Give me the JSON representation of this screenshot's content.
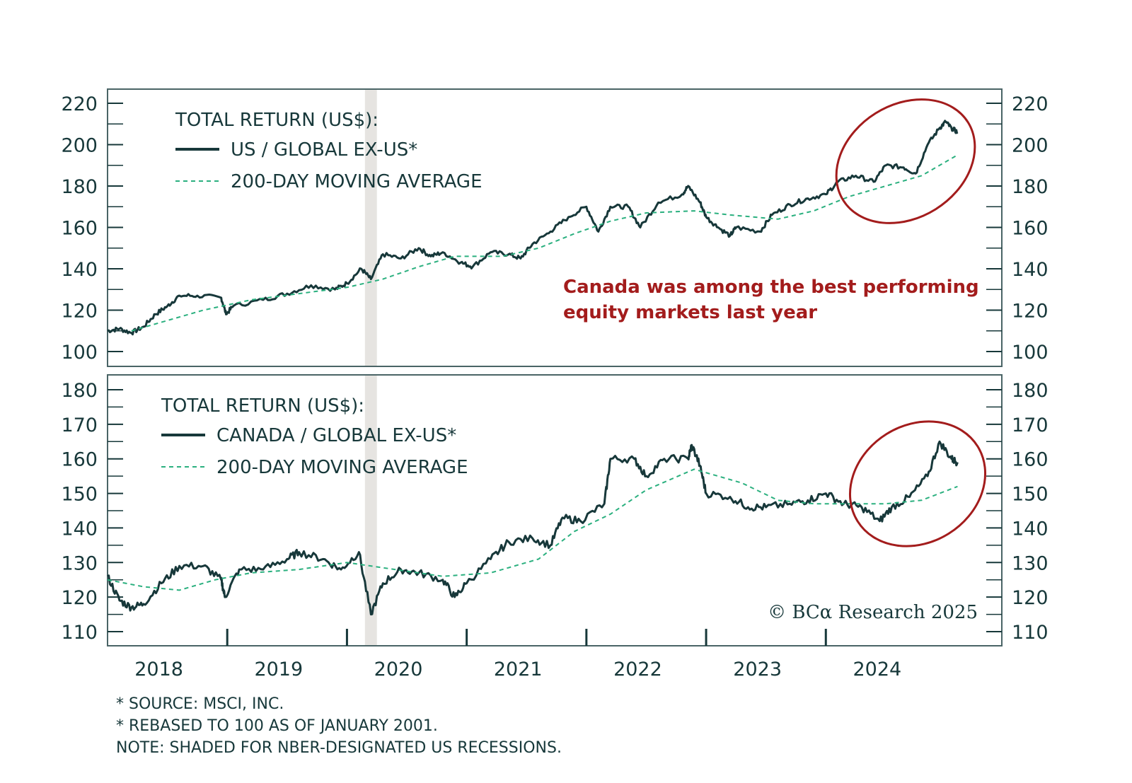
{
  "colors": {
    "series": "#17383a",
    "moving_average": "#2bb07f",
    "annotation": "#a31c1c",
    "recession": "#e6e4e1",
    "frame": "#4a6466"
  },
  "chart_data": [
    {
      "type": "line",
      "legend_title": "TOTAL RETURN (US$):",
      "ylim": [
        100,
        220
      ],
      "yticks": [
        100,
        120,
        140,
        160,
        180,
        200,
        220
      ],
      "ytick_labels": [
        "100",
        "120",
        "140",
        "160",
        "180",
        "200",
        "220"
      ],
      "recession_shading": [
        [
          2020.15,
          2020.25
        ]
      ],
      "annotation": {
        "lines": [
          "Canada was among the best performing",
          "equity markets last year"
        ],
        "highlight": "2024 to early 2025 circled"
      },
      "series": [
        {
          "name": "US / GLOBAL EX-US*",
          "style": "solid",
          "x": [
            2018.0,
            2018.1,
            2018.2,
            2018.3,
            2018.4,
            2018.5,
            2018.6,
            2018.75,
            2018.95,
            2018.99,
            2019.05,
            2019.3,
            2019.5,
            2019.7,
            2019.9,
            2020.0,
            2020.12,
            2020.2,
            2020.3,
            2020.45,
            2020.6,
            2020.7,
            2020.8,
            2020.95,
            2021.05,
            2021.2,
            2021.35,
            2021.45,
            2021.55,
            2021.7,
            2021.85,
            2022.0,
            2022.1,
            2022.2,
            2022.35,
            2022.45,
            2022.6,
            2022.8,
            2022.85,
            2022.95,
            2023.0,
            2023.1,
            2023.2,
            2023.25,
            2023.45,
            2023.55,
            2023.7,
            2023.85,
            2024.0,
            2024.1,
            2024.25,
            2024.4,
            2024.5,
            2024.65,
            2024.75,
            2024.85,
            2024.95,
            2025.0,
            2025.05,
            2025.1
          ],
          "y": [
            110,
            111,
            109,
            112,
            118,
            122,
            127,
            127,
            126,
            118,
            122,
            125,
            128,
            132,
            130,
            133,
            140,
            135,
            147,
            145,
            150,
            146,
            148,
            143,
            141,
            148,
            147,
            145,
            152,
            158,
            165,
            170,
            158,
            170,
            170,
            160,
            172,
            176,
            180,
            172,
            165,
            160,
            156,
            160,
            158,
            166,
            171,
            174,
            176,
            182,
            185,
            182,
            190,
            189,
            186,
            200,
            208,
            211,
            208,
            206
          ]
        },
        {
          "name": "200-DAY MOVING AVERAGE",
          "style": "dashed",
          "x": [
            2018.2,
            2018.5,
            2018.8,
            2019.2,
            2019.6,
            2020.0,
            2020.3,
            2020.6,
            2020.9,
            2021.3,
            2021.6,
            2021.9,
            2022.2,
            2022.5,
            2022.9,
            2023.2,
            2023.6,
            2023.9,
            2024.2,
            2024.5,
            2024.8,
            2025.1
          ],
          "y": [
            110,
            115,
            120,
            125,
            128,
            131,
            135,
            141,
            146,
            146,
            150,
            157,
            163,
            167,
            168,
            166,
            164,
            168,
            175,
            180,
            185,
            195
          ]
        }
      ]
    },
    {
      "type": "line",
      "legend_title": "TOTAL RETURN (US$):",
      "ylim": [
        110,
        180
      ],
      "yticks": [
        110,
        120,
        130,
        140,
        150,
        160,
        170,
        180
      ],
      "ytick_labels": [
        "110",
        "120",
        "130",
        "140",
        "150",
        "160",
        "170",
        "180"
      ],
      "recession_shading": [
        [
          2020.15,
          2020.25
        ]
      ],
      "highlight": "2024 to early 2025 circled",
      "series": [
        {
          "name": "CANADA / GLOBAL EX-US*",
          "style": "solid",
          "x": [
            2018.0,
            2018.1,
            2018.2,
            2018.3,
            2018.45,
            2018.6,
            2018.8,
            2018.95,
            2018.98,
            2019.1,
            2019.3,
            2019.5,
            2019.6,
            2019.8,
            2019.95,
            2020.1,
            2020.2,
            2020.3,
            2020.45,
            2020.6,
            2020.8,
            2020.9,
            2021.0,
            2021.2,
            2021.35,
            2021.55,
            2021.7,
            2021.8,
            2021.95,
            2022.15,
            2022.2,
            2022.4,
            2022.5,
            2022.65,
            2022.85,
            2022.88,
            2022.95,
            2023.0,
            2023.2,
            2023.35,
            2023.5,
            2023.7,
            2023.85,
            2024.0,
            2024.15,
            2024.3,
            2024.45,
            2024.55,
            2024.7,
            2024.85,
            2024.95,
            2025.05,
            2025.1
          ],
          "y": [
            126,
            119,
            117,
            118,
            124,
            129,
            129,
            125,
            120,
            128,
            128,
            131,
            133,
            131,
            128,
            133,
            115,
            124,
            128,
            127,
            125,
            120,
            124,
            131,
            136,
            137,
            135,
            143,
            142,
            147,
            160,
            160,
            155,
            160,
            160,
            164,
            158,
            150,
            149,
            146,
            146,
            147,
            148,
            150,
            147,
            146,
            142,
            146,
            149,
            155,
            165,
            160,
            159
          ]
        },
        {
          "name": "200-DAY MOVING AVERAGE",
          "style": "dashed",
          "x": [
            2018.0,
            2018.3,
            2018.6,
            2018.9,
            2019.2,
            2019.6,
            2020.0,
            2020.4,
            2020.8,
            2021.2,
            2021.6,
            2021.9,
            2022.2,
            2022.5,
            2022.9,
            2023.3,
            2023.6,
            2023.9,
            2024.2,
            2024.5,
            2024.8,
            2025.1
          ],
          "y": [
            125,
            123,
            122,
            125,
            127,
            128,
            130,
            128,
            126,
            127,
            131,
            139,
            144,
            151,
            157,
            153,
            148,
            147,
            147,
            147,
            148,
            152
          ]
        }
      ]
    }
  ],
  "xaxis": {
    "tick_years": [
      2019,
      2020,
      2021,
      2022,
      2023,
      2024
    ],
    "labels": [
      "2018",
      "2019",
      "2020",
      "2021",
      "2022",
      "2023",
      "2024"
    ],
    "label_years": [
      2018.5,
      2019.5,
      2020.5,
      2021.5,
      2022.5,
      2023.5,
      2024.5
    ],
    "range": [
      2018.0,
      2025.47
    ]
  },
  "footer": {
    "notes": [
      "* SOURCE: MSCI, INC.",
      "* REBASED TO 100 AS OF JANUARY 2001.",
      "NOTE: SHADED FOR NBER-DESIGNATED US RECESSIONS."
    ]
  },
  "copyright": "© BCα Research 2025"
}
